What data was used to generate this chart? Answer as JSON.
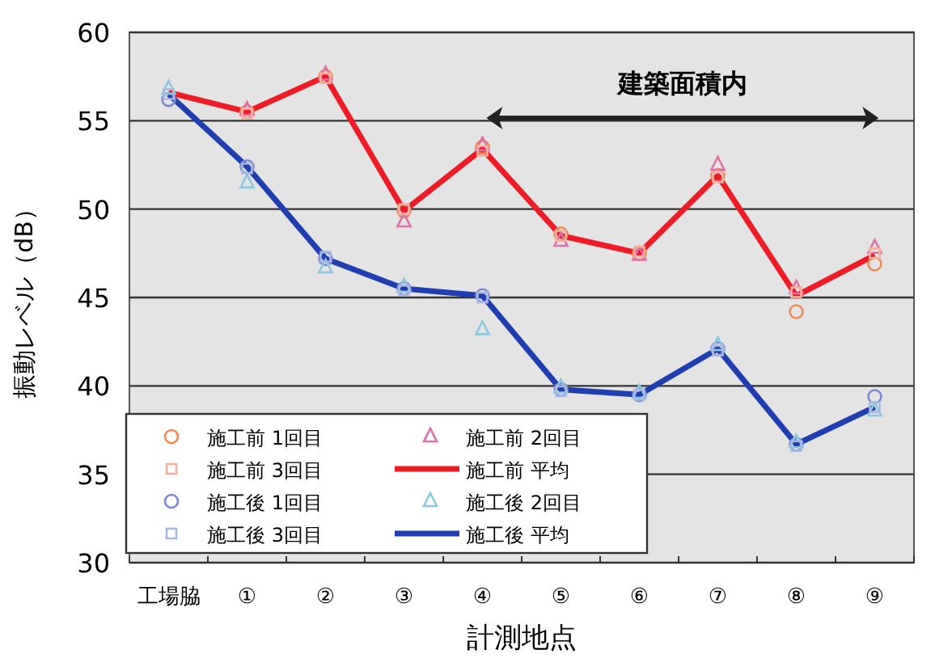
{
  "chart_data": {
    "type": "line",
    "ylabel": "振動レベル（dB）",
    "xlabel": "計測地点",
    "categories": [
      "工場脇",
      "①",
      "②",
      "③",
      "④",
      "⑤",
      "⑥",
      "⑦",
      "⑧",
      "⑨"
    ],
    "ylim": [
      30,
      60
    ],
    "yticks": [
      30,
      35,
      40,
      45,
      50,
      55,
      60
    ],
    "grid": "y",
    "legend": "bottom left",
    "annotations": [
      "建築面積内"
    ],
    "series": [
      {
        "name": "施工前 1回目",
        "type": "scatter",
        "marker": "circle",
        "color": "#f08a50",
        "values": [
          null,
          55.5,
          57.5,
          49.9,
          53.5,
          48.6,
          47.5,
          51.9,
          44.2,
          46.9
        ]
      },
      {
        "name": "施工前 2回目",
        "type": "scatter",
        "marker": "triangle",
        "color": "#e070a8",
        "values": [
          null,
          55.6,
          57.6,
          49.3,
          53.6,
          48.2,
          47.4,
          52.5,
          45.5,
          47.8
        ]
      },
      {
        "name": "施工前 3回目",
        "type": "scatter",
        "marker": "square",
        "color": "#f4b0a0",
        "values": [
          null,
          55.4,
          57.4,
          50.0,
          53.3,
          48.5,
          47.6,
          51.8,
          45.3,
          47.5
        ]
      },
      {
        "name": "施工前 平均",
        "marker": "none",
        "color": "#ee1c25",
        "values": [
          56.6,
          55.5,
          57.5,
          49.9,
          53.4,
          48.5,
          47.5,
          51.9,
          45.1,
          47.4
        ]
      },
      {
        "name": "施工後 1回目",
        "type": "scatter",
        "marker": "circle",
        "color": "#7a8ad8",
        "values": [
          56.2,
          52.4,
          47.2,
          45.5,
          45.1,
          39.8,
          39.5,
          42.1,
          36.7,
          39.4
        ]
      },
      {
        "name": "施工後 2回目",
        "type": "scatter",
        "marker": "triangle",
        "color": "#8cc8e0",
        "values": [
          56.8,
          51.5,
          46.7,
          45.6,
          43.2,
          39.9,
          39.6,
          42.3,
          36.8,
          38.6
        ]
      },
      {
        "name": "施工後 3回目",
        "type": "scatter",
        "marker": "square",
        "color": "#a8b8e0",
        "values": [
          56.5,
          52.3,
          47.3,
          45.4,
          45.0,
          39.7,
          39.5,
          42.0,
          36.6,
          38.8
        ]
      },
      {
        "name": "施工後 平均",
        "marker": "none",
        "color": "#1f3fb0",
        "values": [
          56.5,
          52.4,
          47.2,
          45.5,
          45.1,
          39.8,
          39.5,
          42.1,
          36.7,
          38.8
        ]
      }
    ]
  }
}
